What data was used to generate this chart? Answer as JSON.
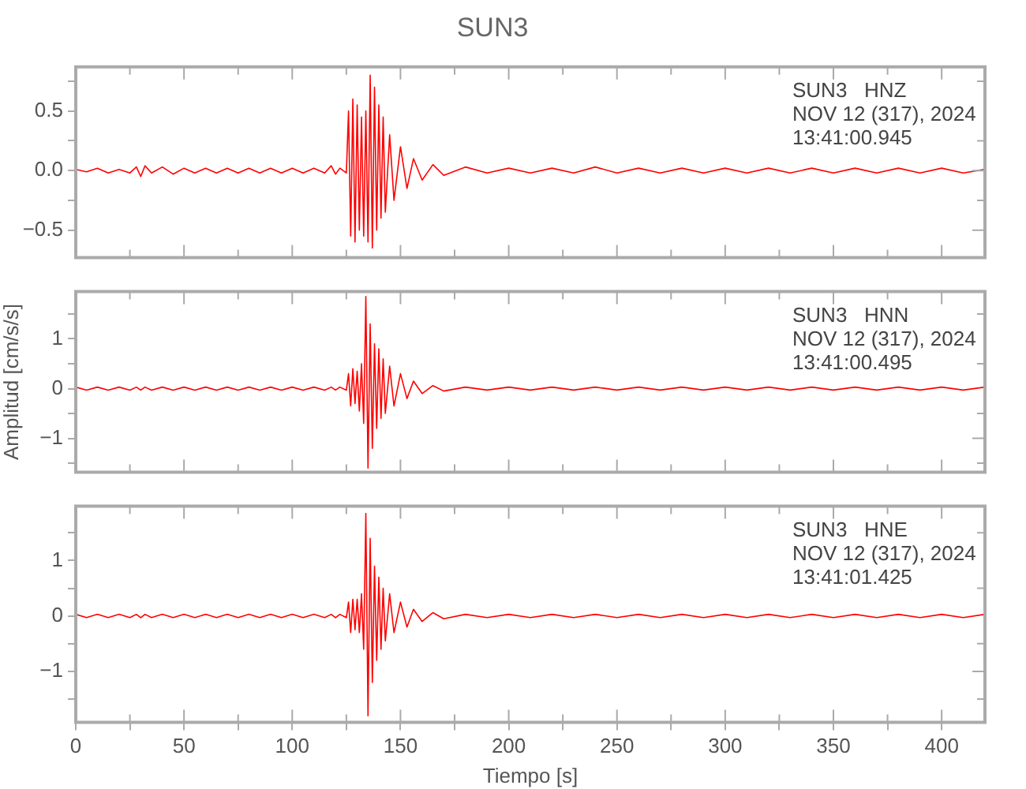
{
  "chart_data": [
    {
      "type": "line",
      "title": "SUN3",
      "annotations": [
        "SUN3   HNZ",
        "NOV 12 (317), 2024",
        "13:41:00.945"
      ],
      "xlim": [
        0,
        420
      ],
      "xticks": [
        0,
        {
          "value": 25,
          "label": null
        },
        50,
        {
          "value": 75,
          "label": null
        },
        100,
        {
          "value": 125,
          "label": null
        },
        150,
        {
          "value": 175,
          "label": null
        },
        200,
        {
          "value": 225,
          "label": null
        },
        250,
        {
          "value": 275,
          "label": null
        },
        300,
        {
          "value": 325,
          "label": null
        },
        350,
        {
          "value": 375,
          "label": null
        },
        400
      ],
      "ylim": [
        -0.73,
        0.87
      ],
      "yticks": [
        {
          "value": -0.5,
          "label": "−0.5"
        },
        {
          "value": -0.25,
          "label": null
        },
        {
          "value": 0,
          "label": "0.0"
        },
        {
          "value": 0.25,
          "label": null
        },
        0.5,
        {
          "value": 0.75,
          "label": null
        }
      ],
      "tick_labels": "y",
      "marker": "none",
      "x": [
        0,
        5,
        10,
        15,
        20,
        25,
        28,
        30,
        32,
        35,
        40,
        45,
        50,
        55,
        60,
        65,
        70,
        75,
        80,
        85,
        90,
        95,
        100,
        105,
        110,
        115,
        118,
        120,
        122,
        125,
        126,
        127,
        128,
        129,
        130,
        131,
        132,
        133,
        134,
        135,
        136,
        137,
        138,
        139,
        140,
        141,
        142,
        143,
        145,
        147,
        150,
        153,
        156,
        160,
        165,
        170,
        180,
        190,
        200,
        210,
        220,
        230,
        240,
        250,
        260,
        270,
        280,
        290,
        300,
        310,
        320,
        330,
        340,
        350,
        360,
        370,
        380,
        390,
        400,
        410,
        420
      ],
      "series": [
        {
          "color": "#ff0000",
          "values": [
            0.01,
            -0.01,
            0.02,
            -0.02,
            0.01,
            -0.02,
            0.03,
            -0.05,
            0.04,
            -0.02,
            0.03,
            -0.03,
            0.02,
            -0.02,
            0.02,
            -0.02,
            0.02,
            -0.02,
            0.02,
            -0.02,
            0.02,
            -0.02,
            0.02,
            -0.02,
            0.02,
            -0.02,
            0.04,
            -0.03,
            0.02,
            -0.02,
            0.5,
            -0.55,
            0.6,
            -0.6,
            0.55,
            -0.5,
            0.45,
            -0.55,
            0.5,
            -0.6,
            0.8,
            -0.65,
            0.7,
            -0.5,
            0.55,
            -0.4,
            0.45,
            -0.35,
            0.3,
            -0.25,
            0.2,
            -0.15,
            0.1,
            -0.08,
            0.05,
            -0.04,
            0.03,
            -0.02,
            0.02,
            -0.02,
            0.02,
            -0.02,
            0.03,
            -0.02,
            0.02,
            -0.02,
            0.02,
            -0.02,
            0.02,
            -0.02,
            0.02,
            -0.02,
            0.02,
            -0.02,
            0.02,
            -0.02,
            0.02,
            -0.02,
            0.02,
            -0.02,
            0.01
          ]
        }
      ]
    },
    {
      "type": "line",
      "ylabel": "Amplitud [cm/s/s]",
      "annotations": [
        "SUN3   HNN",
        "NOV 12 (317), 2024",
        "13:41:00.495"
      ],
      "xlim": [
        0,
        420
      ],
      "xticks": [
        0,
        {
          "value": 25,
          "label": null
        },
        50,
        {
          "value": 75,
          "label": null
        },
        100,
        {
          "value": 125,
          "label": null
        },
        150,
        {
          "value": 175,
          "label": null
        },
        200,
        {
          "value": 225,
          "label": null
        },
        250,
        {
          "value": 275,
          "label": null
        },
        300,
        {
          "value": 325,
          "label": null
        },
        350,
        {
          "value": 375,
          "label": null
        },
        400
      ],
      "ylim": [
        -1.68,
        1.95
      ],
      "yticks": [
        {
          "value": -1.5,
          "label": null
        },
        {
          "value": -1,
          "label": "−1"
        },
        {
          "value": -0.5,
          "label": null
        },
        0,
        {
          "value": 0.5,
          "label": null
        },
        1,
        {
          "value": 1.5,
          "label": null
        }
      ],
      "tick_labels": "y",
      "marker": "none",
      "x": [
        0,
        5,
        10,
        15,
        20,
        25,
        28,
        30,
        32,
        35,
        40,
        45,
        50,
        55,
        60,
        65,
        70,
        75,
        80,
        85,
        90,
        95,
        100,
        105,
        110,
        115,
        118,
        120,
        122,
        125,
        126,
        127,
        128,
        129,
        130,
        131,
        132,
        133,
        134,
        135,
        136,
        137,
        138,
        139,
        140,
        141,
        142,
        143,
        145,
        147,
        150,
        153,
        156,
        160,
        165,
        170,
        180,
        190,
        200,
        210,
        220,
        230,
        240,
        250,
        260,
        270,
        280,
        290,
        300,
        310,
        320,
        330,
        340,
        350,
        360,
        370,
        380,
        390,
        400,
        410,
        420
      ],
      "series": [
        {
          "color": "#ff0000",
          "values": [
            0.03,
            -0.03,
            0.03,
            -0.03,
            0.03,
            -0.03,
            0.03,
            -0.03,
            0.03,
            -0.03,
            0.03,
            -0.03,
            0.03,
            -0.03,
            0.03,
            -0.03,
            0.03,
            -0.03,
            0.03,
            -0.03,
            0.03,
            -0.03,
            0.03,
            -0.03,
            0.03,
            -0.03,
            0.03,
            -0.03,
            0.03,
            -0.03,
            0.3,
            -0.35,
            0.4,
            -0.3,
            0.35,
            -0.45,
            0.5,
            -0.7,
            1.85,
            -1.6,
            1.3,
            -1.2,
            0.9,
            -0.8,
            0.8,
            -0.6,
            0.6,
            -0.5,
            0.45,
            -0.35,
            0.3,
            -0.2,
            0.15,
            -0.1,
            0.06,
            -0.05,
            0.03,
            -0.03,
            0.03,
            -0.03,
            0.03,
            -0.03,
            0.03,
            -0.03,
            0.03,
            -0.03,
            0.03,
            -0.03,
            0.03,
            -0.03,
            0.03,
            -0.03,
            0.03,
            -0.03,
            0.03,
            -0.03,
            0.03,
            -0.03,
            0.03,
            -0.03,
            0.03
          ]
        }
      ]
    },
    {
      "type": "line",
      "xlabel": "Tiempo [s]",
      "annotations": [
        "SUN3   HNE",
        "NOV 12 (317), 2024",
        "13:41:01.425"
      ],
      "xlim": [
        0,
        420
      ],
      "xticks": [
        0,
        {
          "value": 25,
          "label": null
        },
        50,
        {
          "value": 75,
          "label": null
        },
        100,
        {
          "value": 125,
          "label": null
        },
        150,
        {
          "value": 175,
          "label": null
        },
        200,
        {
          "value": 225,
          "label": null
        },
        250,
        {
          "value": 275,
          "label": null
        },
        300,
        {
          "value": 325,
          "label": null
        },
        350,
        {
          "value": 375,
          "label": null
        },
        400
      ],
      "ylim": [
        -1.92,
        1.98
      ],
      "yticks": [
        {
          "value": -1.5,
          "label": null
        },
        {
          "value": -1,
          "label": "−1"
        },
        {
          "value": -0.5,
          "label": null
        },
        0,
        {
          "value": 0.5,
          "label": null
        },
        1,
        {
          "value": 1.5,
          "label": null
        }
      ],
      "marker": "none",
      "x": [
        0,
        5,
        10,
        15,
        20,
        25,
        28,
        30,
        32,
        35,
        40,
        45,
        50,
        55,
        60,
        65,
        70,
        75,
        80,
        85,
        90,
        95,
        100,
        105,
        110,
        115,
        118,
        120,
        122,
        125,
        126,
        127,
        128,
        129,
        130,
        131,
        132,
        133,
        134,
        135,
        136,
        137,
        138,
        139,
        140,
        141,
        142,
        143,
        145,
        147,
        150,
        153,
        156,
        160,
        165,
        170,
        180,
        190,
        200,
        210,
        220,
        230,
        240,
        250,
        260,
        270,
        280,
        290,
        300,
        310,
        320,
        330,
        340,
        350,
        360,
        370,
        380,
        390,
        400,
        410,
        420
      ],
      "series": [
        {
          "color": "#ff0000",
          "values": [
            0.03,
            -0.03,
            0.03,
            -0.03,
            0.03,
            -0.03,
            0.03,
            -0.03,
            0.03,
            -0.03,
            0.03,
            -0.03,
            0.03,
            -0.03,
            0.03,
            -0.03,
            0.03,
            -0.03,
            0.03,
            -0.03,
            0.03,
            -0.03,
            0.03,
            -0.03,
            0.03,
            -0.03,
            0.03,
            -0.03,
            0.03,
            -0.03,
            0.25,
            -0.3,
            0.3,
            -0.25,
            0.3,
            -0.3,
            0.4,
            -0.6,
            1.85,
            -1.8,
            1.4,
            -1.2,
            0.9,
            -0.8,
            0.7,
            -0.6,
            0.5,
            -0.45,
            0.4,
            -0.3,
            0.25,
            -0.2,
            0.12,
            -0.1,
            0.06,
            -0.05,
            0.03,
            -0.03,
            0.03,
            -0.03,
            0.03,
            -0.03,
            0.03,
            -0.03,
            0.03,
            -0.03,
            0.03,
            -0.03,
            0.03,
            -0.03,
            0.03,
            -0.03,
            0.03,
            -0.03,
            0.03,
            -0.03,
            0.03,
            -0.03,
            0.03,
            -0.03,
            0.03
          ]
        }
      ]
    }
  ]
}
